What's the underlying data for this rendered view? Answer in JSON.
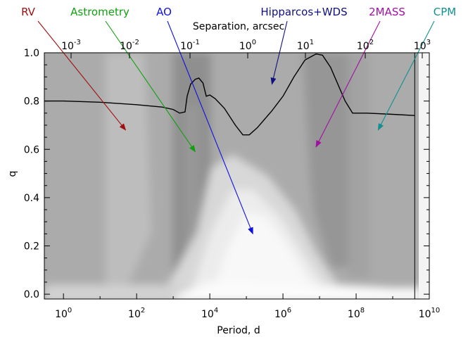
{
  "chart_data": {
    "type": "line",
    "xlabel": "Period, d",
    "ylabel": "q",
    "top_axis_label": "Separation, arcsec",
    "x_scale": "log",
    "x_range": [
      0.3,
      10000000000.0
    ],
    "y_range": [
      -0.02,
      1.0
    ],
    "x_ticks": [
      {
        "value": 1,
        "label": "10",
        "exp": "0"
      },
      {
        "value": 100,
        "label": "10",
        "exp": "2"
      },
      {
        "value": 10000,
        "label": "10",
        "exp": "4"
      },
      {
        "value": 1000000,
        "label": "10",
        "exp": "6"
      },
      {
        "value": 100000000,
        "label": "10",
        "exp": "8"
      },
      {
        "value": 10000000000,
        "label": "10",
        "exp": "10"
      }
    ],
    "top_ticks": [
      {
        "label": "10",
        "exp": "-3"
      },
      {
        "label": "10",
        "exp": "-2"
      },
      {
        "label": "10",
        "exp": "-1"
      },
      {
        "label": "10",
        "exp": "0"
      },
      {
        "label": "10",
        "exp": "1"
      },
      {
        "label": "10",
        "exp": "2"
      },
      {
        "label": "10",
        "exp": "3"
      }
    ],
    "y_ticks": [
      {
        "value": 0.0,
        "label": "0.0"
      },
      {
        "value": 0.2,
        "label": "0.2"
      },
      {
        "value": 0.4,
        "label": "0.4"
      },
      {
        "value": 0.6,
        "label": "0.6"
      },
      {
        "value": 0.8,
        "label": "0.8"
      },
      {
        "value": 1.0,
        "label": "1.0"
      }
    ],
    "series": [
      {
        "color": "#000000",
        "points": [
          [
            0.3,
            0.8
          ],
          [
            1,
            0.8
          ],
          [
            10,
            0.795
          ],
          [
            100,
            0.785
          ],
          [
            500,
            0.775
          ],
          [
            1000,
            0.765
          ],
          [
            1500,
            0.75
          ],
          [
            2100,
            0.755
          ],
          [
            2400,
            0.82
          ],
          [
            3000,
            0.87
          ],
          [
            4000,
            0.89
          ],
          [
            5000,
            0.895
          ],
          [
            6500,
            0.875
          ],
          [
            8000,
            0.82
          ],
          [
            10000,
            0.825
          ],
          [
            14000,
            0.81
          ],
          [
            25000,
            0.77
          ],
          [
            50000,
            0.7
          ],
          [
            80000,
            0.66
          ],
          [
            120000,
            0.66
          ],
          [
            200000,
            0.69
          ],
          [
            500000,
            0.76
          ],
          [
            1000000,
            0.82
          ],
          [
            2000000,
            0.9
          ],
          [
            4000000,
            0.97
          ],
          [
            8000000,
            0.995
          ],
          [
            12000000,
            0.99
          ],
          [
            20000000,
            0.94
          ],
          [
            50000000,
            0.8
          ],
          [
            80000000,
            0.75
          ],
          [
            200000000,
            0.75
          ],
          [
            1000000000,
            0.745
          ],
          [
            4000000000,
            0.74
          ]
        ]
      }
    ],
    "annotations": [
      {
        "text": "RV",
        "color": "#a01010",
        "arrow_to": [
          50,
          0.68
        ]
      },
      {
        "text": "Astrometry",
        "color": "#10a010",
        "arrow_to": [
          4000,
          0.59
        ]
      },
      {
        "text": "AO",
        "color": "#1010e0",
        "arrow_to": [
          150000,
          0.25
        ]
      },
      {
        "text": "Hipparcos+WDS",
        "color": "#101080",
        "arrow_to": [
          500000,
          0.87
        ]
      },
      {
        "text": "2MASS",
        "color": "#a010a0",
        "arrow_to": [
          8000000,
          0.61
        ]
      },
      {
        "text": "CPM",
        "color": "#109090",
        "arrow_to": [
          400000000,
          0.68
        ]
      }
    ],
    "vertical_line_x": 4000000000,
    "grid": false,
    "legend": "none"
  }
}
